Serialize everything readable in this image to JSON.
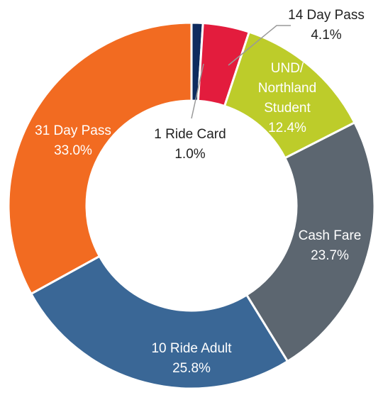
{
  "chart_data": {
    "type": "donut",
    "categories": [
      "1 Ride Card",
      "14 Day Pass",
      "UND/\nNorthland\nStudent",
      "Cash Fare",
      "10 Ride Adult",
      "31 Day Pass"
    ],
    "values": [
      1.0,
      4.1,
      12.4,
      23.7,
      25.8,
      33.0
    ],
    "value_labels": [
      "1.0%",
      "4.1%",
      "12.4%",
      "23.7%",
      "25.8%",
      "33.0%"
    ],
    "colors": [
      "#0e2b5e",
      "#e31c3d",
      "#bdcc2a",
      "#5c6670",
      "#3a6796",
      "#f26b21"
    ]
  }
}
